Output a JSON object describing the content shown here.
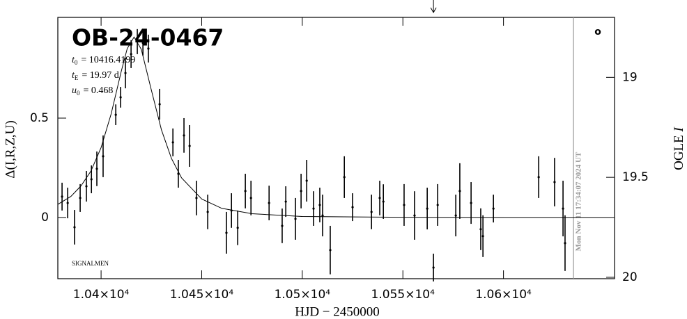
{
  "chart_data": {
    "type": "scatter",
    "title": "OB-24-0467",
    "params": [
      {
        "symbol": "t",
        "sub": "0",
        "text": "= 10416.4199"
      },
      {
        "symbol": "t",
        "sub": "E",
        "text": "= 19.97 d"
      },
      {
        "symbol": "u",
        "sub": "0",
        "text": "= 0.468"
      }
    ],
    "footer_label": "SIGNALMEN",
    "corner_mark": "o",
    "x_label": "HJD − 2450000",
    "y_label": "Δ(I,R,Z,U)",
    "y2_label": "OGLE",
    "y2_label_italic": "I",
    "xlim": [
      10378.5,
      10655.2
    ],
    "xticks": [
      {
        "value": 10400,
        "label": "1.04×10⁴"
      },
      {
        "value": 10450,
        "label": "1.045×10⁴"
      },
      {
        "value": 10500,
        "label": "1.05×10⁴"
      },
      {
        "value": 10550,
        "label": "1.055×10⁴"
      },
      {
        "value": 10600,
        "label": "1.06×10⁴"
      }
    ],
    "ylim": [
      -0.308,
      1.007
    ],
    "yticks": [
      0,
      0.5
    ],
    "y2lim": [
      20.007,
      18.7
    ],
    "y2ticks": [
      19,
      19.5,
      20
    ],
    "vline": {
      "x": 10634.8,
      "label": "Mon Nov 11 17:34:07 2024 UT",
      "color": "#999999"
    },
    "arrow_x": 10565.2,
    "series": [
      {
        "color": "#000000",
        "x": [
          10380.6,
          10383.4,
          10386.8,
          10389.6,
          10392.7,
          10395.2,
          10397.9,
          10401.0,
          10407.3,
          10409.7,
          10412.1,
          10414.9,
          10418.0,
          10420.8,
          10423.5,
          10429.1,
          10435.7,
          10438.4,
          10441.2,
          10444.0,
          10447.4,
          10453.0,
          10462.3,
          10464.8,
          10467.9,
          10471.7,
          10474.5,
          10483.5,
          10490.0,
          10491.8,
          10496.6,
          10499.4,
          10502.2,
          10505.6,
          10508.7,
          10510.1,
          10513.9,
          10520.9,
          10525.0,
          10534.4,
          10538.5,
          10540.3,
          10550.6,
          10555.8,
          10562.1,
          10565.2,
          10567.3,
          10576.3,
          10578.3,
          10583.9,
          10588.7,
          10589.8,
          10595.0,
          10617.5,
          10625.4,
          10629.6,
          10630.6
        ],
        "values": [
          0.105,
          0.073,
          -0.049,
          0.098,
          0.157,
          0.192,
          0.245,
          0.308,
          0.517,
          0.605,
          0.727,
          0.822,
          0.885,
          0.878,
          0.85,
          0.57,
          0.378,
          0.22,
          0.413,
          0.36,
          0.098,
          0.028,
          -0.077,
          0.035,
          -0.052,
          0.133,
          0.098,
          0.073,
          -0.042,
          0.08,
          -0.007,
          0.133,
          0.185,
          0.045,
          0.063,
          0.01,
          -0.164,
          0.203,
          0.052,
          0.028,
          0.098,
          0.08,
          0.063,
          0.01,
          0.045,
          -0.252,
          0.063,
          0.01,
          0.133,
          0.073,
          -0.059,
          -0.094,
          0.045,
          0.203,
          0.178,
          0.045,
          -0.129
        ],
        "errors": [
          0.07,
          0.077,
          0.087,
          0.07,
          0.077,
          0.07,
          0.087,
          0.105,
          0.052,
          0.052,
          0.077,
          0.07,
          0.063,
          0.063,
          0.07,
          0.077,
          0.07,
          0.07,
          0.087,
          0.105,
          0.087,
          0.087,
          0.105,
          0.087,
          0.087,
          0.087,
          0.087,
          0.087,
          0.087,
          0.077,
          0.105,
          0.087,
          0.105,
          0.087,
          0.087,
          0.105,
          0.122,
          0.105,
          0.07,
          0.087,
          0.087,
          0.087,
          0.105,
          0.122,
          0.105,
          0.07,
          0.105,
          0.105,
          0.14,
          0.105,
          0.105,
          0.105,
          0.07,
          0.105,
          0.122,
          0.14,
          0.14
        ]
      },
      {
        "type": "line",
        "color": "#000000",
        "x": [
          10378.5,
          10385,
          10390,
          10395,
          10400,
          10405,
          10410,
          10413,
          10416.4,
          10420,
          10425,
          10430,
          10435,
          10440,
          10450,
          10460,
          10475,
          10500,
          10550,
          10600,
          10655.2
        ],
        "values": [
          0.066,
          0.106,
          0.159,
          0.234,
          0.352,
          0.521,
          0.735,
          0.85,
          0.908,
          0.846,
          0.64,
          0.441,
          0.297,
          0.199,
          0.093,
          0.046,
          0.019,
          0.005,
          0.001,
          0,
          0
        ]
      }
    ]
  }
}
